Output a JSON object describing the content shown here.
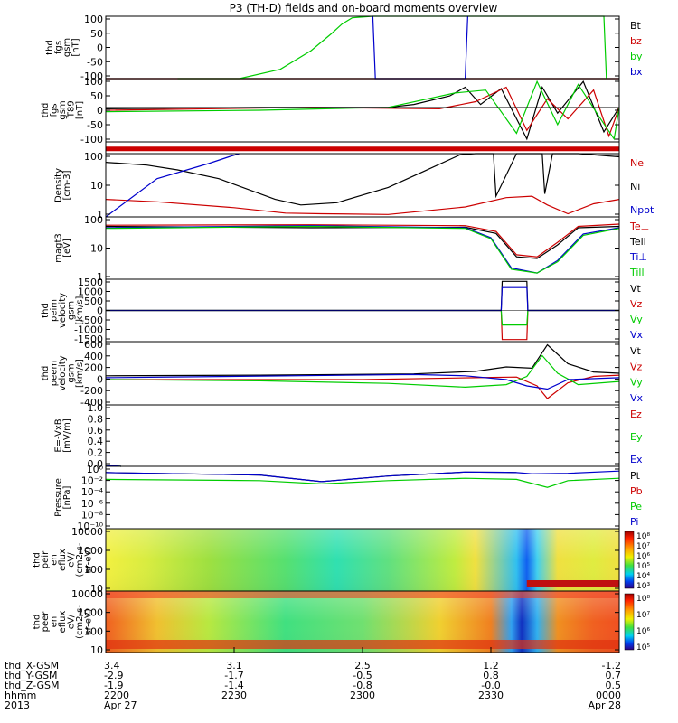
{
  "title": "P3 (TH-D) fields and on-board moments overview",
  "colors": {
    "black": "#000000",
    "red": "#cc0000",
    "green": "#00cc00",
    "blue": "#0000cc"
  },
  "chart_data": [
    {
      "type": "line",
      "panel": "fgs",
      "ylabel": [
        "thd",
        "fgs",
        "gsm",
        "[nT]"
      ],
      "ylim": [
        -100,
        100
      ],
      "yticks": [
        "100",
        "50",
        "0",
        "-50",
        "-100"
      ],
      "legend": [
        "Bt",
        "bz",
        "by",
        "bx"
      ],
      "series": [
        {
          "name": "Bt",
          "x": [
            0.0,
            1.0
          ],
          "y": [
            -100,
            -100
          ]
        },
        {
          "name": "bz",
          "x": [
            0.0,
            1.0
          ],
          "y": [
            -100,
            -100
          ]
        },
        {
          "name": "by",
          "x": [
            0.14,
            0.26,
            0.34,
            0.4,
            0.44,
            0.46,
            0.48,
            0.52,
            0.97,
            0.975
          ],
          "y": [
            -100,
            -100,
            -70,
            -10,
            45,
            75,
            95,
            100,
            100,
            -100
          ]
        },
        {
          "name": "bx",
          "x": [
            0.52,
            0.525,
            0.7,
            0.705
          ],
          "y": [
            100,
            -100,
            -100,
            100
          ]
        }
      ]
    },
    {
      "type": "line",
      "panel": "fgs_tsy",
      "ylabel": [
        "thd",
        "fgs",
        "gsm",
        "-T89",
        "[nT]"
      ],
      "ylim": [
        -120,
        100
      ],
      "yticks": [
        "100",
        "50",
        "0",
        "-50",
        "-100"
      ],
      "legend": [],
      "series": [
        {
          "name": "black",
          "x": [
            0.0,
            0.3,
            0.55,
            0.6,
            0.67,
            0.7,
            0.73,
            0.77,
            0.82,
            0.85,
            0.88,
            0.93,
            0.97,
            1.0
          ],
          "y": [
            -5,
            0,
            0,
            10,
            40,
            70,
            10,
            65,
            -110,
            70,
            -20,
            90,
            -85,
            0
          ]
        },
        {
          "name": "red",
          "x": [
            0.0,
            0.4,
            0.65,
            0.72,
            0.78,
            0.82,
            0.86,
            0.9,
            0.95,
            0.98,
            1.0
          ],
          "y": [
            -10,
            0,
            -5,
            20,
            70,
            -80,
            30,
            -40,
            60,
            -100,
            0
          ]
        },
        {
          "name": "green",
          "x": [
            0.0,
            0.3,
            0.55,
            0.68,
            0.74,
            0.8,
            0.84,
            0.88,
            0.92,
            0.96,
            0.99,
            1.0
          ],
          "y": [
            -15,
            -10,
            0,
            50,
            60,
            -90,
            90,
            -60,
            80,
            -30,
            -110,
            0
          ]
        }
      ]
    },
    {
      "type": "line",
      "panel": "flags",
      "ylabel": [],
      "ylim": [
        0,
        1
      ],
      "yticks": [],
      "legend": [],
      "series": [
        {
          "name": "red",
          "x": [
            0.0,
            1.0
          ],
          "y": [
            0.4,
            0.4
          ]
        }
      ]
    },
    {
      "type": "line",
      "panel": "density",
      "ylabel": [
        "Density",
        "[cm-3]"
      ],
      "yscale": "log",
      "ylim": [
        0.6,
        200
      ],
      "yticks": [
        "100",
        "10",
        "1"
      ],
      "legend": [
        "Ne",
        "Ni",
        "Npot"
      ],
      "series": [
        {
          "name": "Ne",
          "x": [
            0.0,
            0.1,
            0.25,
            0.35,
            0.42,
            0.55,
            0.7,
            0.78,
            0.83,
            0.86,
            0.9,
            0.95,
            1.0
          ],
          "y": [
            3,
            2.4,
            1.4,
            0.85,
            0.8,
            0.75,
            1.5,
            3.5,
            4.0,
            1.8,
            0.8,
            2.0,
            3.0
          ]
        },
        {
          "name": "Ni",
          "x": [
            0.0,
            0.08,
            0.14,
            0.22,
            0.33,
            0.38,
            0.45,
            0.55,
            0.62,
            0.69,
            0.72,
            0.755,
            0.76,
            0.8,
            0.85,
            0.855,
            0.87,
            0.92,
            1.0
          ],
          "y": [
            90,
            70,
            45,
            20,
            3,
            1.8,
            2.2,
            9,
            40,
            180,
            250,
            250,
            4.0,
            250,
            250,
            5,
            250,
            250,
            150
          ]
        },
        {
          "name": "Npot",
          "x": [
            0.0,
            0.1,
            0.2,
            0.24,
            0.26
          ],
          "y": [
            0.1,
            20,
            80,
            150,
            250
          ]
        }
      ]
    },
    {
      "type": "line",
      "panel": "temperature",
      "ylabel": [
        "magt3",
        "[eV]"
      ],
      "yscale": "log",
      "ylim": [
        1,
        1000
      ],
      "yticks": [
        "100",
        "10",
        "1"
      ],
      "legend": [
        "Te⊥",
        "Tell",
        "Ti⊥",
        "Till"
      ],
      "series": [
        {
          "name": "Te⊥",
          "x": [
            0.0,
            0.4,
            0.7,
            0.76,
            0.8,
            0.84,
            0.88,
            0.92,
            1.0
          ],
          "y": [
            400,
            420,
            380,
            200,
            15,
            12,
            60,
            350,
            450
          ]
        },
        {
          "name": "Tell",
          "x": [
            0.0,
            0.4,
            0.7,
            0.76,
            0.8,
            0.84,
            0.88,
            0.92,
            1.0
          ],
          "y": [
            350,
            300,
            320,
            160,
            12,
            10,
            45,
            300,
            350
          ]
        },
        {
          "name": "Ti⊥",
          "x": [
            0.0,
            0.4,
            0.7,
            0.75,
            0.79,
            0.84,
            0.88,
            0.93,
            1.0
          ],
          "y": [
            300,
            380,
            300,
            100,
            3.5,
            2.0,
            8,
            150,
            300
          ]
        },
        {
          "name": "Till",
          "x": [
            0.0,
            0.4,
            0.7,
            0.75,
            0.79,
            0.84,
            0.88,
            0.93,
            1.0
          ],
          "y": [
            280,
            350,
            280,
            90,
            3.0,
            2.0,
            7,
            130,
            280
          ]
        }
      ]
    },
    {
      "type": "line",
      "panel": "peim_velocity",
      "ylabel": [
        "thd",
        "peim",
        "velocity",
        "gsm",
        "[km/s]"
      ],
      "ylim": [
        -1500,
        1500
      ],
      "yticks": [
        "1500",
        "1000",
        "500",
        "0",
        "-500",
        "-1000",
        "-1500"
      ],
      "legend": [
        "Vt",
        "Vz",
        "Vy",
        "Vx"
      ],
      "series": [
        {
          "name": "Vt",
          "x": [
            0.0,
            0.77,
            0.772,
            0.82,
            0.822,
            1.0
          ],
          "y": [
            0,
            0,
            1400,
            1400,
            0,
            0
          ]
        },
        {
          "name": "Vz",
          "x": [
            0.0,
            0.77,
            0.772,
            0.82,
            0.822,
            1.0
          ],
          "y": [
            0,
            0,
            -1400,
            -1400,
            0,
            0
          ]
        },
        {
          "name": "Vy",
          "x": [
            0.0,
            0.77,
            0.772,
            0.82,
            0.822,
            1.0
          ],
          "y": [
            0,
            0,
            -700,
            -700,
            0,
            0
          ]
        },
        {
          "name": "Vx",
          "x": [
            0.0,
            0.77,
            0.772,
            0.82,
            0.822,
            1.0
          ],
          "y": [
            0,
            0,
            1100,
            1100,
            0,
            0
          ]
        }
      ]
    },
    {
      "type": "line",
      "panel": "peem_velocity",
      "ylabel": [
        "thd",
        "peem",
        "velocity",
        "gsm",
        "[km/s]"
      ],
      "ylim": [
        -400,
        600
      ],
      "yticks": [
        "600",
        "400",
        "200",
        "0",
        "-200",
        "-400"
      ],
      "legend": [
        "Vt",
        "Vz",
        "Vy",
        "Vx"
      ],
      "series": [
        {
          "name": "Vt",
          "x": [
            0.0,
            0.3,
            0.6,
            0.72,
            0.78,
            0.83,
            0.86,
            0.9,
            0.95,
            1.0
          ],
          "y": [
            60,
            70,
            90,
            130,
            200,
            180,
            550,
            250,
            120,
            100
          ]
        },
        {
          "name": "Vz",
          "x": [
            0.0,
            0.5,
            0.72,
            0.8,
            0.84,
            0.86,
            0.9,
            0.95,
            1.0
          ],
          "y": [
            0,
            0,
            30,
            40,
            -100,
            -300,
            -50,
            50,
            70
          ]
        },
        {
          "name": "Vy",
          "x": [
            0.0,
            0.3,
            0.55,
            0.7,
            0.78,
            0.82,
            0.85,
            0.88,
            0.92,
            1.0
          ],
          "y": [
            0,
            -20,
            -60,
            -120,
            -80,
            50,
            380,
            100,
            -80,
            -30
          ]
        },
        {
          "name": "Vx",
          "x": [
            0.0,
            0.6,
            0.7,
            0.78,
            0.82,
            0.86,
            0.9,
            1.0
          ],
          "y": [
            30,
            80,
            60,
            0,
            -100,
            -150,
            0,
            30
          ]
        }
      ]
    },
    {
      "type": "line",
      "panel": "efield",
      "ylabel": [
        "E=-VxB",
        "[mV/m]"
      ],
      "ylim": [
        0,
        1.0
      ],
      "yticks": [
        "1.0",
        "0.8",
        "0.6",
        "0.4",
        "0.2",
        "0.0"
      ],
      "legend": [
        "Ez",
        "Ey",
        "Ex"
      ],
      "series": [
        {
          "name": "Ez",
          "x": [
            0.0,
            0.03
          ],
          "y": [
            0.02,
            0.0
          ]
        },
        {
          "name": "Ey",
          "x": [
            0.0,
            0.03
          ],
          "y": [
            0.02,
            0.0
          ]
        },
        {
          "name": "Ex",
          "x": [
            0.0,
            0.03
          ],
          "y": [
            0.02,
            0.0
          ]
        }
      ]
    },
    {
      "type": "line",
      "panel": "pressure",
      "ylabel": [
        "Pressure",
        "[nPa]"
      ],
      "yscale": "log",
      "ylim": [
        1e-10,
        10
      ],
      "yticks": [
        "10⁰",
        "10⁻²",
        "10⁻⁴",
        "10⁻⁶",
        "10⁻⁸",
        "10⁻¹⁰"
      ],
      "legend": [
        "Pt",
        "Pb",
        "Pe",
        "Pi"
      ],
      "series": [
        {
          "name": "Pt",
          "x": [
            0.0,
            0.3,
            0.42,
            0.55,
            0.7,
            0.78,
            0.8
          ],
          "y": [
            0.8,
            0.3,
            0.02,
            0.2,
            1.0,
            0.9,
            0.8
          ]
        },
        {
          "name": "Pi",
          "x": [
            0.0,
            0.3,
            0.42,
            0.55,
            0.7,
            0.78,
            0.8,
            0.83,
            0.9,
            1.0
          ],
          "y": [
            0.8,
            0.3,
            0.02,
            0.2,
            1.0,
            0.9,
            0.8,
            0.5,
            0.6,
            1.5
          ]
        },
        {
          "name": "Pe",
          "x": [
            0.0,
            0.3,
            0.42,
            0.55,
            0.7,
            0.8,
            0.86,
            0.9,
            1.0
          ],
          "y": [
            0.05,
            0.03,
            0.008,
            0.03,
            0.08,
            0.05,
            0.002,
            0.03,
            0.08
          ]
        }
      ]
    },
    {
      "type": "heatmap",
      "panel": "peir_en_eflux",
      "ylabel": [
        "thd",
        "peir",
        "en",
        "eflux",
        "eV/",
        "(cm2-s-",
        "sr-eV)"
      ],
      "yscale": "log",
      "ylim": [
        5,
        25000
      ],
      "yticks": [
        "10000",
        "1000",
        "100",
        "10"
      ],
      "colorbar": {
        "ticks": [
          "10⁸",
          "10⁷",
          "10⁶",
          "10⁵",
          "10⁴",
          "10³"
        ]
      }
    },
    {
      "type": "heatmap",
      "panel": "peer_en_eflux",
      "ylabel": [
        "thd",
        "peer",
        "en",
        "eflux",
        "eV/",
        "(cm2-s-",
        "sr-eV)"
      ],
      "yscale": "log",
      "ylim": [
        5,
        25000
      ],
      "yticks": [
        "10000",
        "1000",
        "100",
        "10"
      ],
      "colorbar": {
        "ticks": [
          "10⁸",
          "10⁷",
          "10⁶",
          "10⁵"
        ]
      }
    }
  ],
  "xaxis": {
    "row_labels": [
      "thd_X-GSM",
      "thd_Y-GSM",
      "thd_Z-GSM",
      "hhmm",
      "2013"
    ],
    "ticks": [
      {
        "f": 0.0,
        "vals": [
          "3.4",
          "-2.9",
          "-1.9",
          "2200",
          "Apr 27"
        ]
      },
      {
        "f": 0.25,
        "vals": [
          "3.1",
          "-1.7",
          "-1.4",
          "2230",
          ""
        ]
      },
      {
        "f": 0.5,
        "vals": [
          "2.5",
          "-0.5",
          "-0.8",
          "2300",
          ""
        ]
      },
      {
        "f": 0.75,
        "vals": [
          "1.2",
          "0.8",
          "-0.0",
          "2330",
          ""
        ]
      },
      {
        "f": 1.0,
        "vals": [
          "-1.2",
          "0.7",
          "0.5",
          "0000",
          "Apr 28"
        ]
      }
    ]
  }
}
